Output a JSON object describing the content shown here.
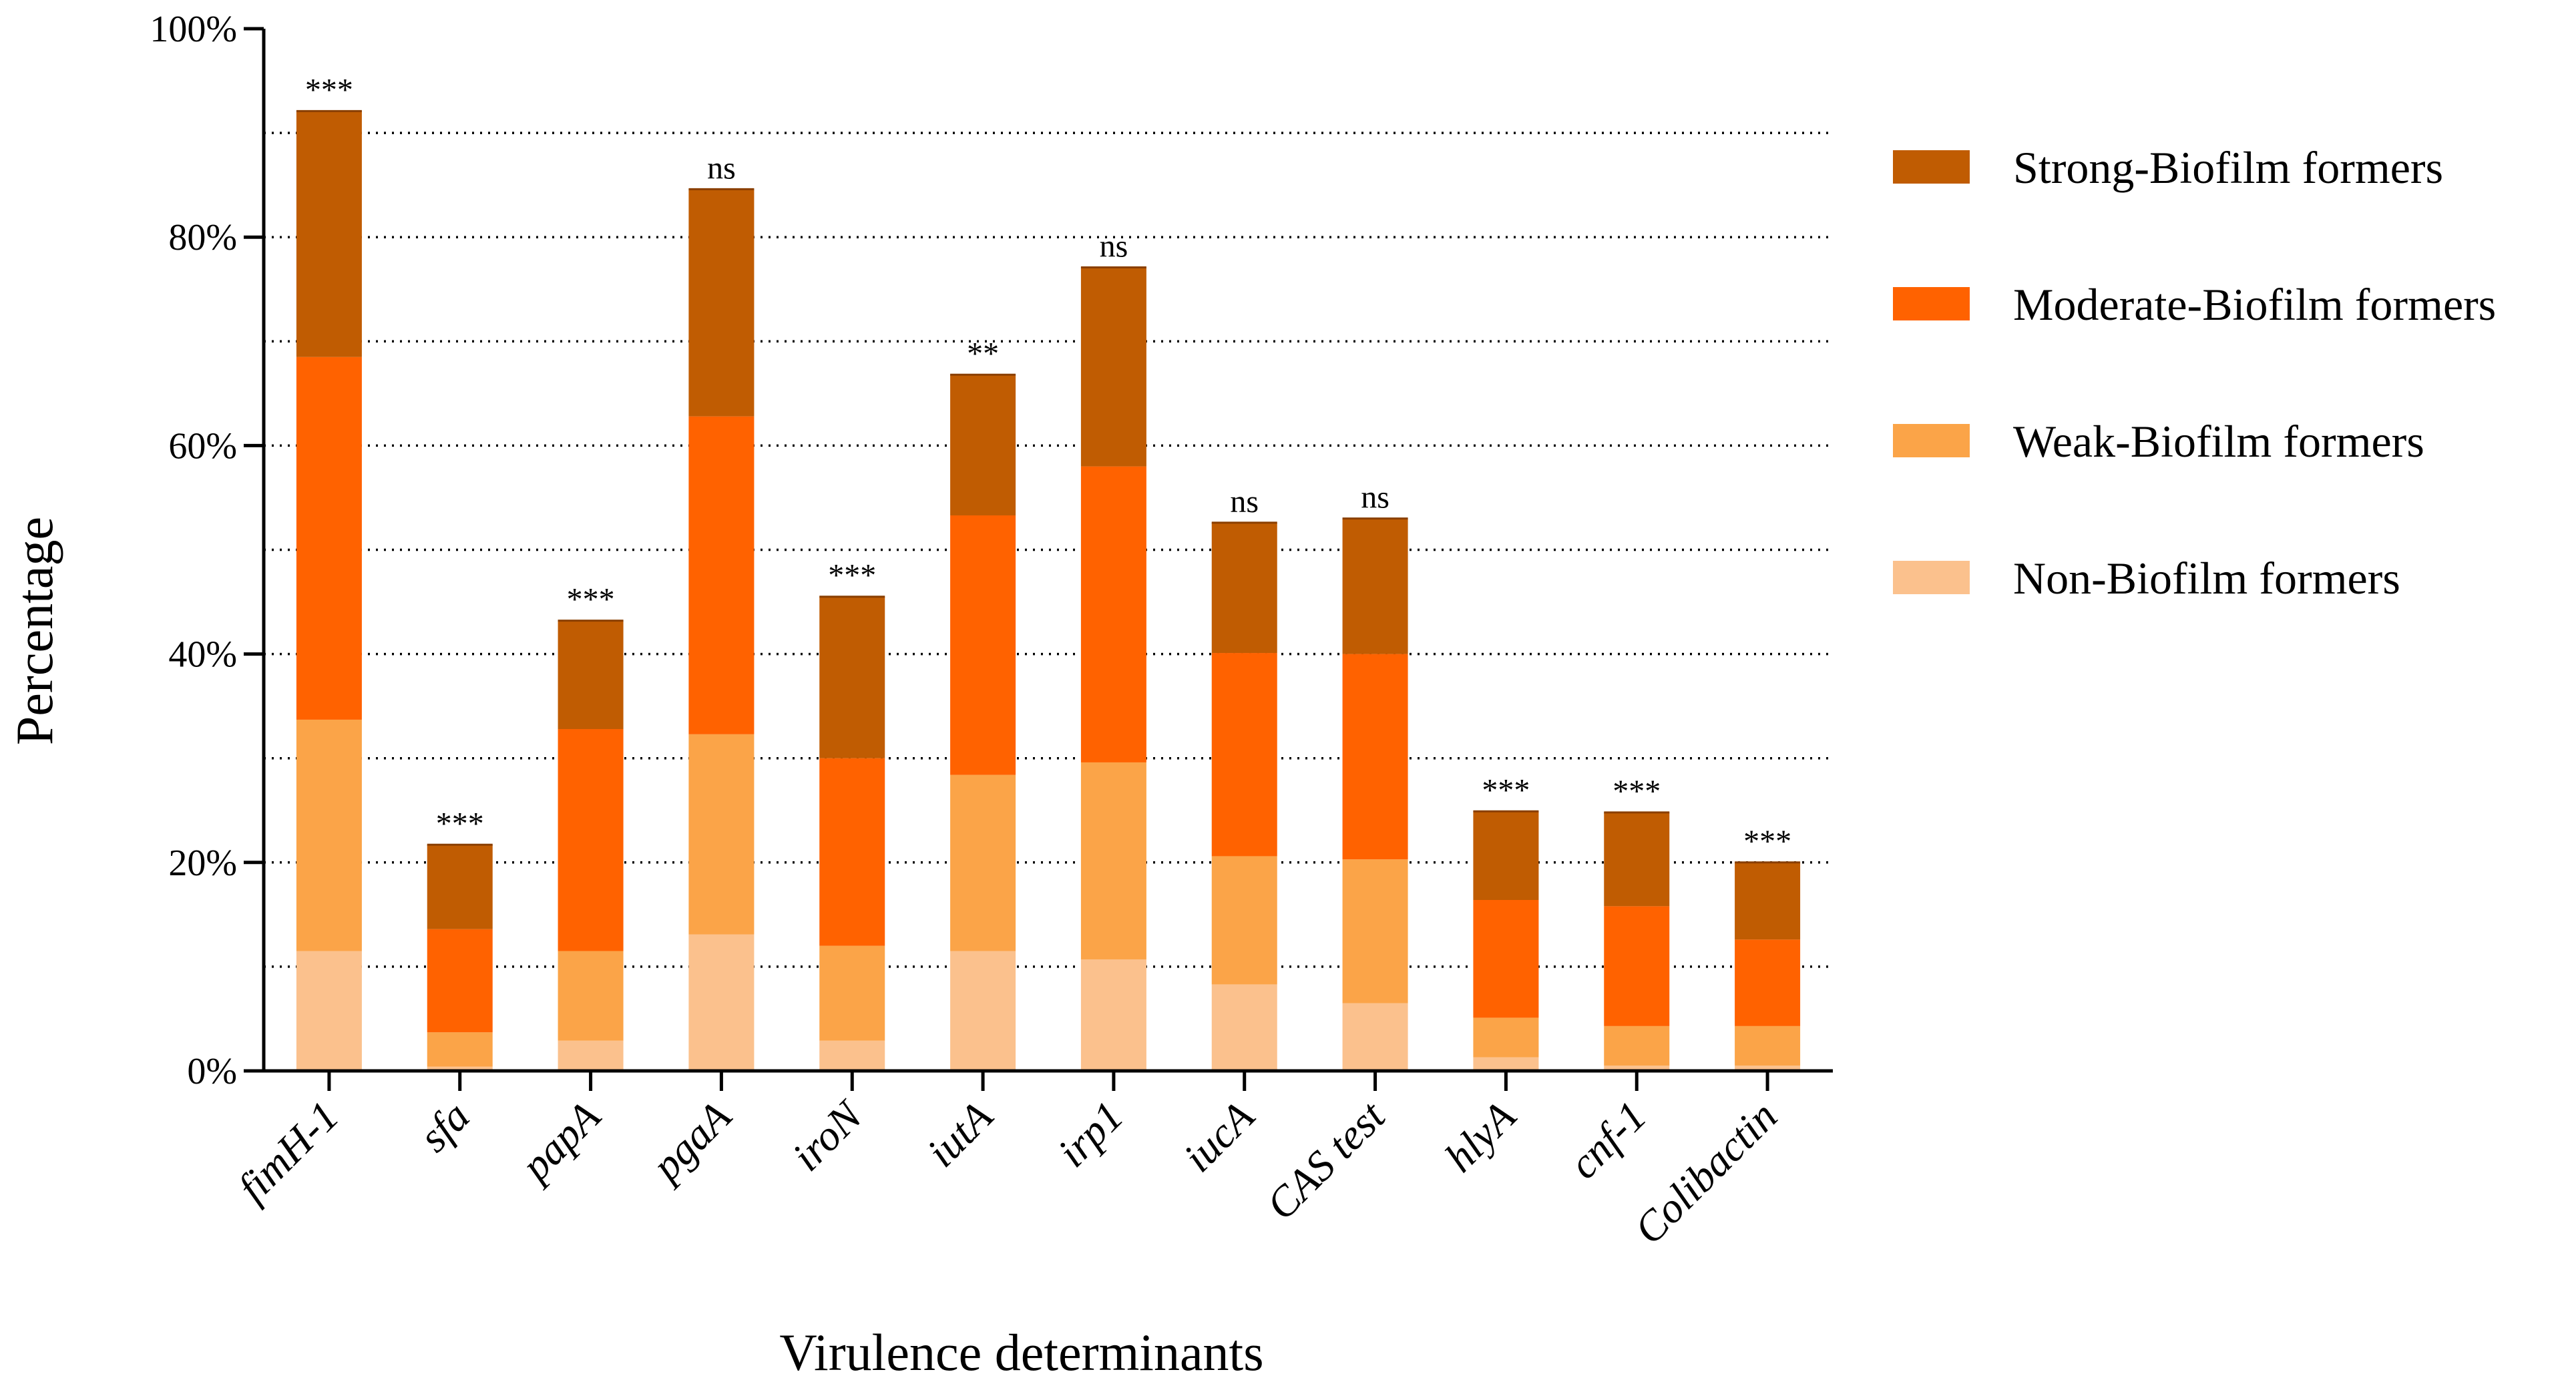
{
  "chart_data": {
    "type": "bar",
    "stacked": true,
    "title": "",
    "xlabel": "Virulence determinants",
    "ylabel": "Percentage",
    "ylim": [
      0,
      100
    ],
    "yticks": [
      "0%",
      "20%",
      "40%",
      "60%",
      "80%",
      "100%"
    ],
    "grid": "dotted horizontal every 10%",
    "legend_position": "right",
    "categories": [
      "fimH-1",
      "sfa",
      "papA",
      "pgaA",
      "iroN",
      "iutA",
      "irp1",
      "iucA",
      "CAS test",
      "hlyA",
      "cnf-1",
      "Colibactin"
    ],
    "significance": [
      "***",
      "***",
      "***",
      "ns",
      "***",
      "**",
      "ns",
      "ns",
      "ns",
      "***",
      "***",
      "***"
    ],
    "series": [
      {
        "name": "Non-Biofilm formers",
        "color": "#FBC18D",
        "values": [
          11.5,
          0.4,
          2.9,
          13.1,
          2.9,
          11.5,
          10.7,
          8.3,
          6.5,
          1.3,
          0.5,
          0.5
        ]
      },
      {
        "name": "Weak-Biofilm formers",
        "color": "#FBA448",
        "values": [
          22.2,
          3.3,
          8.6,
          19.2,
          9.1,
          16.9,
          18.9,
          12.3,
          13.8,
          3.8,
          3.8,
          3.8
        ]
      },
      {
        "name": "Moderate-Biofilm formers",
        "color": "#FF6200",
        "values": [
          34.8,
          9.9,
          21.3,
          30.5,
          18.0,
          24.9,
          28.4,
          19.5,
          19.7,
          11.3,
          11.5,
          8.3
        ]
      },
      {
        "name": "Strong-Biofilm formers",
        "color": "#C05C02",
        "values": [
          23.6,
          8.1,
          10.4,
          21.8,
          15.5,
          13.5,
          19.1,
          12.5,
          13.0,
          8.5,
          9.0,
          7.4
        ]
      }
    ]
  }
}
